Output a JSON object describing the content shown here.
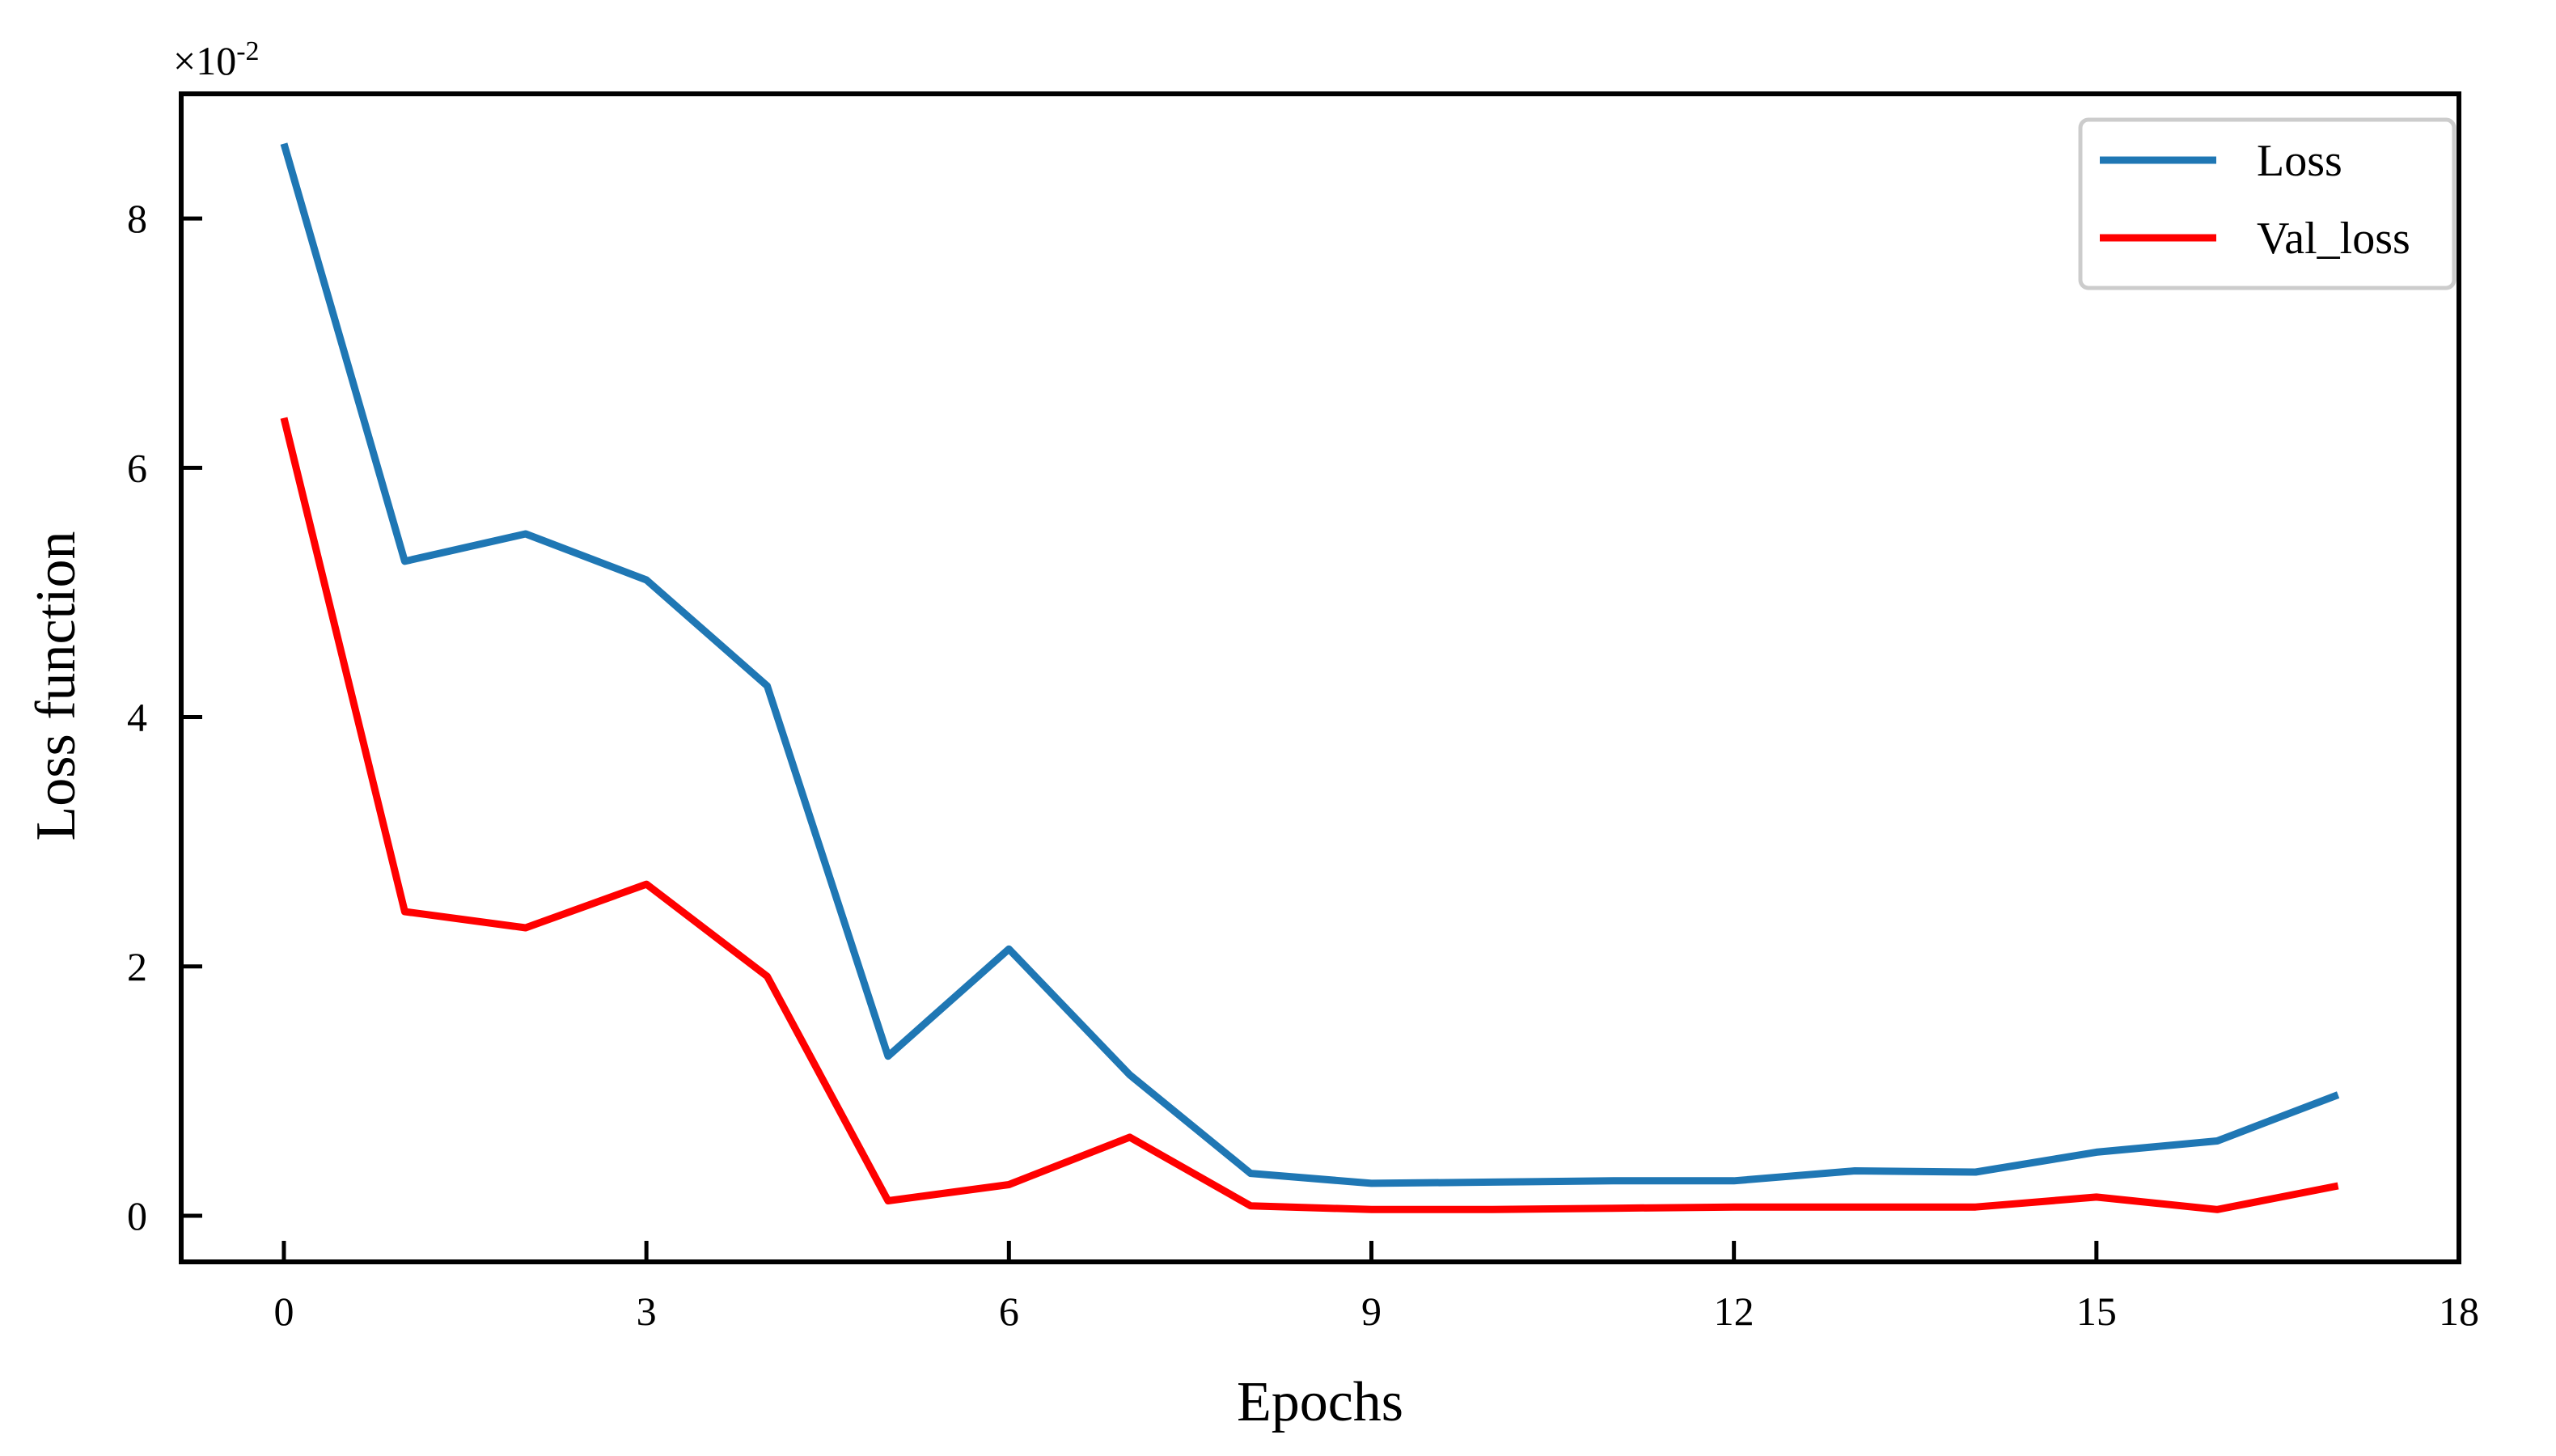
{
  "chart_data": {
    "type": "line",
    "title": "",
    "xlabel": "Epochs",
    "ylabel": "Loss function",
    "y_scale_label": "×10",
    "y_scale_exponent": "-2",
    "xlim": [
      -0.85,
      18
    ],
    "ylim": [
      -0.37,
      9.0
    ],
    "x_ticks": [
      0,
      3,
      6,
      9,
      12,
      15,
      18
    ],
    "y_ticks": [
      0,
      2,
      4,
      6,
      8
    ],
    "grid": false,
    "legend_position": "top-right",
    "x": [
      0,
      1,
      2,
      3,
      4,
      5,
      6,
      7,
      8,
      9,
      10,
      11,
      12,
      13,
      14,
      15,
      16,
      17
    ],
    "series": [
      {
        "name": "Loss",
        "color": "#1f77b4",
        "values": [
          8.6,
          5.25,
          5.47,
          5.1,
          4.25,
          1.28,
          2.14,
          1.13,
          0.34,
          0.26,
          0.27,
          0.28,
          0.28,
          0.36,
          0.35,
          0.51,
          0.6,
          0.97
        ]
      },
      {
        "name": "Val_loss",
        "color": "#ff0000",
        "values": [
          6.4,
          2.44,
          2.31,
          2.66,
          1.92,
          0.12,
          0.25,
          0.63,
          0.08,
          0.05,
          0.05,
          0.06,
          0.07,
          0.07,
          0.07,
          0.15,
          0.05,
          0.24
        ]
      }
    ]
  }
}
